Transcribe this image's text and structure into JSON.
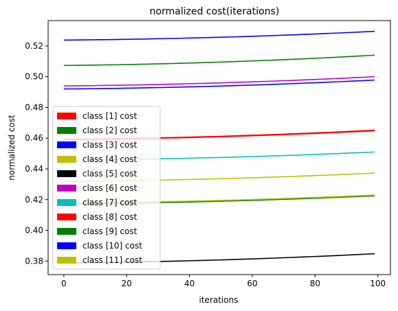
{
  "chart_data": {
    "type": "line",
    "title": "normalized cost(iterations)",
    "xlabel": "iterations",
    "ylabel": "normalized cost",
    "xlim": [
      -5,
      104
    ],
    "ylim": [
      0.3712,
      0.5365
    ],
    "x_ticks": [
      0,
      20,
      40,
      60,
      80,
      100
    ],
    "x_tick_labels": [
      "0",
      "20",
      "40",
      "60",
      "80",
      "100"
    ],
    "y_ticks": [
      0.38,
      0.4,
      0.42,
      0.44,
      0.46,
      0.48,
      0.5,
      0.52
    ],
    "y_tick_labels": [
      "0.38",
      "0.40",
      "0.42",
      "0.44",
      "0.46",
      "0.48",
      "0.50",
      "0.52"
    ],
    "grid": false,
    "legend_position": "lower-left",
    "x_range": [
      0,
      99
    ],
    "series": [
      {
        "name": "class [1] cost",
        "color": "#ff0000",
        "start": 0.459,
        "end": 0.4648
      },
      {
        "name": "class [2] cost",
        "color": "#008000",
        "start": 0.5073,
        "end": 0.514
      },
      {
        "name": "class [3] cost",
        "color": "#0000ff",
        "start": 0.492,
        "end": 0.4978
      },
      {
        "name": "class [4] cost",
        "color": "#bfbf00",
        "start": 0.4318,
        "end": 0.4373
      },
      {
        "name": "class [5] cost",
        "color": "#000000",
        "start": 0.3788,
        "end": 0.3848
      },
      {
        "name": "class [6] cost",
        "color": "#bf00bf",
        "start": 0.494,
        "end": 0.5
      },
      {
        "name": "class [7] cost",
        "color": "#00bfbf",
        "start": 0.4457,
        "end": 0.451
      },
      {
        "name": "class [8] cost",
        "color": "#ff0000",
        "start": 0.4593,
        "end": 0.4652
      },
      {
        "name": "class [9] cost",
        "color": "#008000",
        "start": 0.4172,
        "end": 0.4225
      },
      {
        "name": "class [10] cost",
        "color": "#0000ff",
        "start": 0.5238,
        "end": 0.5295
      },
      {
        "name": "class [11] cost",
        "color": "#bfbf00",
        "start": 0.4178,
        "end": 0.423
      }
    ]
  }
}
